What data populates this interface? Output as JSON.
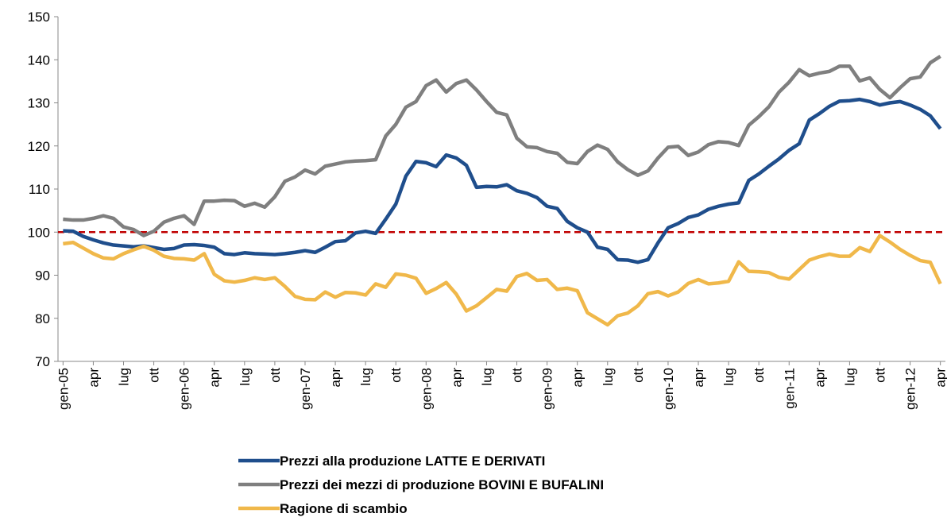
{
  "chart_data": {
    "type": "line",
    "categories": [
      "gen-05",
      null,
      null,
      "apr",
      null,
      null,
      "lug",
      null,
      null,
      "ott",
      null,
      null,
      "gen-06",
      null,
      null,
      "apr",
      null,
      null,
      "lug",
      null,
      null,
      "ott",
      null,
      null,
      "gen-07",
      null,
      null,
      "apr",
      null,
      null,
      "lug",
      null,
      null,
      "ott",
      null,
      null,
      "gen-08",
      null,
      null,
      "apr",
      null,
      null,
      "lug",
      null,
      null,
      "ott",
      null,
      null,
      "gen-09",
      null,
      null,
      "apr",
      null,
      null,
      "lug",
      null,
      null,
      "ott",
      null,
      null,
      "gen-10",
      null,
      null,
      "apr",
      null,
      null,
      "lug",
      null,
      null,
      "ott",
      null,
      null,
      "gen-11",
      null,
      null,
      "apr",
      null,
      null,
      "lug",
      null,
      null,
      "ott",
      null,
      null,
      "gen-12",
      null,
      null,
      "apr"
    ],
    "series": [
      {
        "name": "Prezzi alla produzione LATTE E DERIVATI",
        "color": "#1f4e8c",
        "values": [
          100.3,
          100.2,
          99,
          98.2,
          97.5,
          97,
          96.8,
          96.6,
          96.8,
          96.4,
          96,
          96.2,
          97,
          97.1,
          96.9,
          96.5,
          95,
          94.8,
          95.2,
          95,
          94.9,
          94.8,
          95,
          95.3,
          95.7,
          95.3,
          96.5,
          97.8,
          98,
          99.8,
          100.2,
          99.7,
          103,
          106.5,
          113,
          116.4,
          116.1,
          115.2,
          117.9,
          117.2,
          115.5,
          110.4,
          110.6,
          110.5,
          111,
          109.6,
          109,
          108,
          106,
          105.5,
          102.5,
          101,
          100,
          96.5,
          96,
          93.6,
          93.5,
          93,
          93.6,
          97.5,
          101,
          102,
          103.4,
          104,
          105.3,
          106,
          106.5,
          106.8,
          112,
          113.5,
          115.3,
          117,
          119,
          120.5,
          126,
          127.5,
          129.2,
          130.4,
          130.5,
          130.8,
          130.3,
          129.5,
          130,
          130.3,
          129.5,
          128.5,
          127,
          124
        ]
      },
      {
        "name": "Prezzi dei mezzi di produzione BOVINI E BUFALINI",
        "color": "#7f7f7f",
        "values": [
          103,
          102.8,
          102.8,
          103.2,
          103.8,
          103.2,
          101.2,
          100.6,
          99.2,
          100.2,
          102.3,
          103.2,
          103.8,
          101.8,
          107.2,
          107.2,
          107.4,
          107.3,
          106,
          106.7,
          105.8,
          108.2,
          111.8,
          112.8,
          114.4,
          113.5,
          115.3,
          115.8,
          116.3,
          116.5,
          116.6,
          116.8,
          122.3,
          125,
          129,
          130.3,
          134,
          135.3,
          132.5,
          134.5,
          135.3,
          133,
          130.3,
          127.8,
          127.2,
          121.8,
          119.8,
          119.6,
          118.7,
          118.3,
          116.2,
          115.9,
          118.7,
          120.2,
          119.2,
          116.3,
          114.5,
          113.2,
          114.2,
          117.2,
          119.7,
          119.9,
          117.8,
          118.6,
          120.3,
          121,
          120.8,
          120.1,
          124.8,
          126.8,
          129.1,
          132.5,
          134.8,
          137.7,
          136.3,
          136.9,
          137.3,
          138.5,
          138.5,
          135.1,
          135.8,
          133.1,
          131.2,
          133.5,
          135.6,
          136,
          139.3,
          140.8
        ]
      },
      {
        "name": "Ragione di scambio",
        "color": "#f0b84a",
        "values": [
          97.3,
          97.6,
          96.3,
          95,
          94,
          93.8,
          95,
          95.9,
          96.7,
          95.8,
          94.4,
          93.9,
          93.8,
          93.5,
          95,
          90.2,
          88.7,
          88.4,
          88.8,
          89.4,
          89,
          89.4,
          87.4,
          85.1,
          84.4,
          84.3,
          86.1,
          84.9,
          86,
          85.9,
          85.4,
          88,
          87.2,
          90.3,
          90,
          89.3,
          85.8,
          86.9,
          88.3,
          85.6,
          81.7,
          82.9,
          84.8,
          86.7,
          86.3,
          89.7,
          90.4,
          88.8,
          89,
          86.7,
          87,
          86.4,
          81.3,
          79.9,
          78.5,
          80.6,
          81.2,
          82.9,
          85.7,
          86.2,
          85.2,
          86.1,
          88.1,
          89,
          88,
          88.2,
          88.6,
          93.1,
          90.9,
          90.8,
          90.6,
          89.5,
          89.1,
          91.3,
          93.5,
          94.3,
          94.9,
          94.4,
          94.4,
          96.4,
          95.5,
          99.2,
          97.7,
          96,
          94.6,
          93.4,
          93,
          88
        ]
      }
    ],
    "reference_line": {
      "value": 100,
      "color": "#c00000"
    },
    "ylim": [
      70,
      150
    ],
    "yticks": [
      70,
      80,
      90,
      100,
      110,
      120,
      130,
      140,
      150
    ],
    "grid": false
  }
}
